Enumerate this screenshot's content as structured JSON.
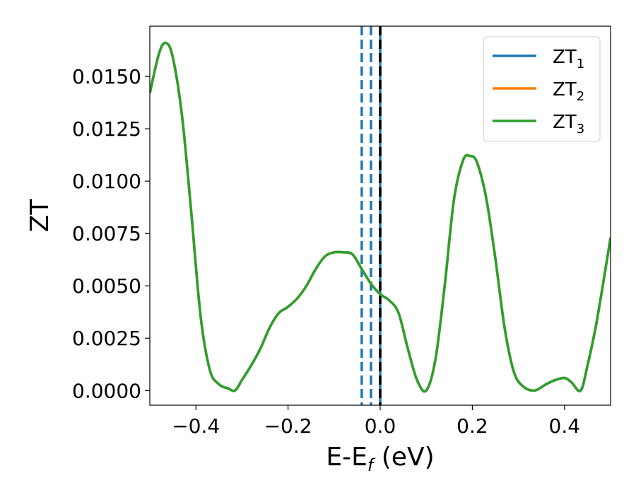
{
  "chart_data": {
    "type": "line",
    "xlabel_main": "E-E",
    "xlabel_sub": "f",
    "xlabel_unit": " (eV)",
    "ylabel": "ZT",
    "xlim": [
      -0.5,
      0.5
    ],
    "ylim": [
      -0.0007,
      0.0174
    ],
    "xticks": [
      -0.4,
      -0.2,
      0.0,
      0.2,
      0.4
    ],
    "xtick_labels": [
      "−0.4",
      "−0.2",
      "0.0",
      "0.2",
      "0.4"
    ],
    "yticks": [
      0.0,
      0.0025,
      0.005,
      0.0075,
      0.01,
      0.0125,
      0.015
    ],
    "ytick_labels": [
      "0.0000",
      "0.0025",
      "0.0050",
      "0.0075",
      "0.0100",
      "0.0125",
      "0.0150"
    ],
    "grid": false,
    "legend_position": "top-right",
    "vlines": [
      {
        "x": -0.04,
        "style": "dashed",
        "color": "#1f77b4"
      },
      {
        "x": -0.02,
        "style": "dashed",
        "color": "#1f77b4"
      },
      {
        "x": 0.0,
        "style": "dashed",
        "color": "#000000"
      },
      {
        "x": 0.0,
        "style": "solid",
        "color": "#1f77b4"
      }
    ],
    "series": [
      {
        "name": "ZT",
        "name_sub": "1",
        "color": "#1f77b4",
        "x": [
          -0.5,
          -0.48,
          -0.465,
          -0.45,
          -0.43,
          -0.41,
          -0.39,
          -0.37,
          -0.35,
          -0.33,
          -0.315,
          -0.3,
          -0.28,
          -0.26,
          -0.24,
          -0.22,
          -0.2,
          -0.18,
          -0.16,
          -0.14,
          -0.12,
          -0.1,
          -0.08,
          -0.06,
          -0.04,
          -0.02,
          0.0,
          0.02,
          0.04,
          0.06,
          0.08,
          0.1,
          0.12,
          0.14,
          0.16,
          0.18,
          0.195,
          0.21,
          0.23,
          0.25,
          0.27,
          0.29,
          0.31,
          0.335,
          0.36,
          0.38,
          0.4,
          0.415,
          0.435,
          0.45,
          0.47,
          0.5
        ],
        "y": [
          0.0142,
          0.0161,
          0.0166,
          0.0159,
          0.0131,
          0.0085,
          0.0036,
          0.001,
          0.0003,
          0.0001,
          0.0,
          0.0005,
          0.0012,
          0.002,
          0.003,
          0.0037,
          0.004,
          0.0044,
          0.005,
          0.0058,
          0.0064,
          0.0066,
          0.0066,
          0.0065,
          0.0058,
          0.0051,
          0.0046,
          0.0043,
          0.0037,
          0.002,
          0.0005,
          0.0,
          0.0015,
          0.005,
          0.0091,
          0.011,
          0.0112,
          0.0109,
          0.0092,
          0.0063,
          0.003,
          0.0009,
          0.0002,
          0.0,
          0.0003,
          0.0005,
          0.0006,
          0.0004,
          0.0,
          0.0012,
          0.0033,
          0.0073
        ]
      },
      {
        "name": "ZT",
        "name_sub": "2",
        "color": "#ff7f0e",
        "x": [
          -0.5,
          -0.48,
          -0.465,
          -0.45,
          -0.43,
          -0.41,
          -0.39,
          -0.37,
          -0.35,
          -0.33,
          -0.315,
          -0.3,
          -0.28,
          -0.26,
          -0.24,
          -0.22,
          -0.2,
          -0.18,
          -0.16,
          -0.14,
          -0.12,
          -0.1,
          -0.08,
          -0.06,
          -0.04,
          -0.02,
          0.0,
          0.02,
          0.04,
          0.06,
          0.08,
          0.1,
          0.12,
          0.14,
          0.16,
          0.18,
          0.195,
          0.21,
          0.23,
          0.25,
          0.27,
          0.29,
          0.31,
          0.335,
          0.36,
          0.38,
          0.4,
          0.415,
          0.435,
          0.45,
          0.47,
          0.5
        ],
        "y": [
          0.0142,
          0.0161,
          0.0166,
          0.0159,
          0.0131,
          0.0085,
          0.0036,
          0.001,
          0.0003,
          0.0001,
          0.0,
          0.0005,
          0.0012,
          0.002,
          0.003,
          0.0037,
          0.004,
          0.0044,
          0.005,
          0.0058,
          0.0064,
          0.0066,
          0.0066,
          0.0065,
          0.0058,
          0.0051,
          0.0046,
          0.0043,
          0.0037,
          0.002,
          0.0005,
          0.0,
          0.0015,
          0.005,
          0.0091,
          0.011,
          0.0112,
          0.0109,
          0.0092,
          0.0063,
          0.003,
          0.0009,
          0.0002,
          0.0,
          0.0003,
          0.0005,
          0.0006,
          0.0004,
          0.0,
          0.0012,
          0.0033,
          0.0073
        ]
      },
      {
        "name": "ZT",
        "name_sub": "3",
        "color": "#2ca02c",
        "x": [
          -0.5,
          -0.48,
          -0.465,
          -0.45,
          -0.43,
          -0.41,
          -0.39,
          -0.37,
          -0.35,
          -0.33,
          -0.315,
          -0.3,
          -0.28,
          -0.26,
          -0.24,
          -0.22,
          -0.2,
          -0.18,
          -0.16,
          -0.14,
          -0.12,
          -0.1,
          -0.08,
          -0.06,
          -0.04,
          -0.02,
          0.0,
          0.02,
          0.04,
          0.06,
          0.08,
          0.1,
          0.12,
          0.14,
          0.16,
          0.18,
          0.195,
          0.21,
          0.23,
          0.25,
          0.27,
          0.29,
          0.31,
          0.335,
          0.36,
          0.38,
          0.4,
          0.415,
          0.435,
          0.45,
          0.47,
          0.5
        ],
        "y": [
          0.0142,
          0.0161,
          0.0166,
          0.0159,
          0.0131,
          0.0085,
          0.0036,
          0.001,
          0.0003,
          0.0001,
          0.0,
          0.0005,
          0.0012,
          0.002,
          0.003,
          0.0037,
          0.004,
          0.0044,
          0.005,
          0.0058,
          0.0064,
          0.0066,
          0.0066,
          0.0065,
          0.0058,
          0.0051,
          0.0046,
          0.0043,
          0.0037,
          0.002,
          0.0005,
          0.0,
          0.0015,
          0.005,
          0.0091,
          0.011,
          0.0112,
          0.0109,
          0.0092,
          0.0063,
          0.003,
          0.0009,
          0.0002,
          0.0,
          0.0003,
          0.0005,
          0.0006,
          0.0004,
          0.0,
          0.0012,
          0.0033,
          0.0073
        ]
      }
    ]
  }
}
